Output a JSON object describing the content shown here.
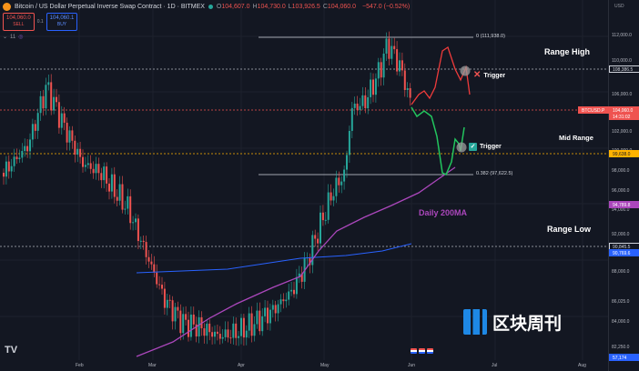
{
  "header": {
    "title": "Bitcoin / US Dollar Perpetual Inverse Swap Contract · 1D · BITMEX",
    "ohlc": [
      {
        "label": "O",
        "value": "104,607.0"
      },
      {
        "label": "H",
        "value": "104,730.0"
      },
      {
        "label": "L",
        "value": "103,926.5"
      },
      {
        "label": "C",
        "value": "104,060.0"
      }
    ],
    "change": "−547.0 (−0.52%)"
  },
  "trade": {
    "sell_price": "104,060.0",
    "sell_label": "SELL",
    "spread": "0.1",
    "buy_price": "104,060.1",
    "buy_label": "BUY"
  },
  "indicators": {
    "count": "11"
  },
  "axis": {
    "currency": "USD",
    "ticks": [
      "112,000.0",
      "110,000.0",
      "106,000.0",
      "102,000.0",
      "100,000.0",
      "98,000.0",
      "96,000.0",
      "94,000.0",
      "92,000.0",
      "88,000.0",
      "86,025.0",
      "84,000.0",
      "82,250.0"
    ],
    "price_tags": [
      {
        "text": "108,386.5",
        "bg": "#131722",
        "color": "#d1d4dc",
        "border": "#d1d4dc"
      },
      {
        "text": "BTCUSD.P",
        "bg": "#ef5350",
        "color": "#ffffff",
        "border": "#ef5350"
      },
      {
        "text": "104,060.0",
        "bg": "#ef5350",
        "color": "#ffffff",
        "border": "#ef5350"
      },
      {
        "text": "14:31:02",
        "bg": "#ef5350",
        "color": "#ffffff",
        "border": "#ef5350"
      },
      {
        "text": "99,638.0",
        "bg": "#ffb300",
        "color": "#131722",
        "border": "#ffb300"
      },
      {
        "text": "94,789.8",
        "bg": "#ab47bc",
        "color": "#ffffff",
        "border": "#ab47bc"
      },
      {
        "text": "90,845.5",
        "bg": "#131722",
        "color": "#d1d4dc",
        "border": "#d1d4dc"
      },
      {
        "text": "90,769.6",
        "bg": "#2962ff",
        "color": "#ffffff",
        "border": "#2962ff"
      },
      {
        "text": "57,174",
        "bg": "#2962ff",
        "color": "#ffffff",
        "border": "#2962ff"
      }
    ]
  },
  "x_axis": {
    "labels": [
      "Feb",
      "Mar",
      "Apr",
      "May",
      "Jun",
      "Jul",
      "Aug"
    ]
  },
  "fib": {
    "level_0": "0 (111,938.0)",
    "level_382": "0.382 (97,622.5)"
  },
  "annotations": {
    "range_high": "Range High",
    "mid_range": "Mid Range",
    "range_low": "Range Low",
    "trigger_top": "Trigger",
    "trigger_bottom": "Trigger",
    "ma_label": "Daily 200MA"
  },
  "watermark": "区块周刊",
  "colors": {
    "bull": "#26a69a",
    "bear": "#ef5350",
    "ma200": "#ab47bc",
    "ma_blue": "#2962ff",
    "bear_path": "#ef3b3b",
    "bull_path": "#22c55e",
    "mid_line": "#ffb300",
    "background": "#131722"
  }
}
